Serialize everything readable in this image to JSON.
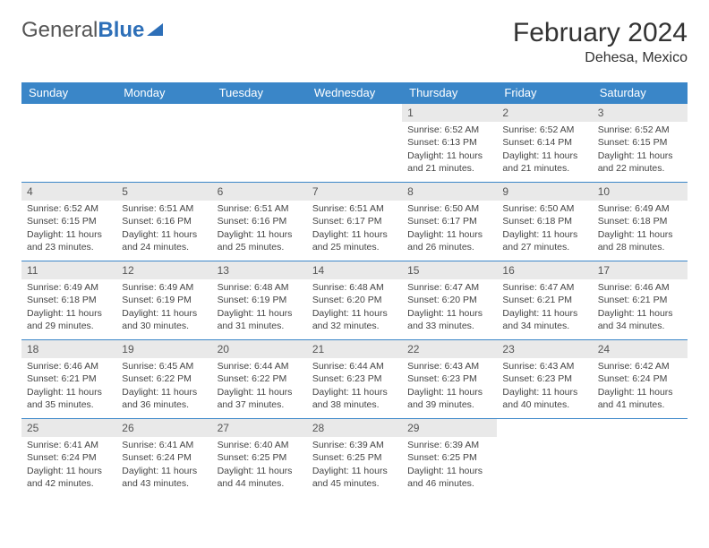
{
  "brand": {
    "part1": "General",
    "part2": "Blue"
  },
  "title": {
    "month": "February 2024",
    "location": "Dehesa, Mexico"
  },
  "colors": {
    "header_bg": "#3a86c8",
    "header_text": "#ffffff",
    "daynum_bg": "#e9e9e9",
    "row_border": "#3a86c8",
    "body_text": "#444444"
  },
  "weekdays": [
    "Sunday",
    "Monday",
    "Tuesday",
    "Wednesday",
    "Thursday",
    "Friday",
    "Saturday"
  ],
  "weeks": [
    [
      {
        "empty": true
      },
      {
        "empty": true
      },
      {
        "empty": true
      },
      {
        "empty": true
      },
      {
        "day": 1,
        "sunrise": "6:52 AM",
        "sunset": "6:13 PM",
        "daylight": "11 hours and 21 minutes."
      },
      {
        "day": 2,
        "sunrise": "6:52 AM",
        "sunset": "6:14 PM",
        "daylight": "11 hours and 21 minutes."
      },
      {
        "day": 3,
        "sunrise": "6:52 AM",
        "sunset": "6:15 PM",
        "daylight": "11 hours and 22 minutes."
      }
    ],
    [
      {
        "day": 4,
        "sunrise": "6:52 AM",
        "sunset": "6:15 PM",
        "daylight": "11 hours and 23 minutes."
      },
      {
        "day": 5,
        "sunrise": "6:51 AM",
        "sunset": "6:16 PM",
        "daylight": "11 hours and 24 minutes."
      },
      {
        "day": 6,
        "sunrise": "6:51 AM",
        "sunset": "6:16 PM",
        "daylight": "11 hours and 25 minutes."
      },
      {
        "day": 7,
        "sunrise": "6:51 AM",
        "sunset": "6:17 PM",
        "daylight": "11 hours and 25 minutes."
      },
      {
        "day": 8,
        "sunrise": "6:50 AM",
        "sunset": "6:17 PM",
        "daylight": "11 hours and 26 minutes."
      },
      {
        "day": 9,
        "sunrise": "6:50 AM",
        "sunset": "6:18 PM",
        "daylight": "11 hours and 27 minutes."
      },
      {
        "day": 10,
        "sunrise": "6:49 AM",
        "sunset": "6:18 PM",
        "daylight": "11 hours and 28 minutes."
      }
    ],
    [
      {
        "day": 11,
        "sunrise": "6:49 AM",
        "sunset": "6:18 PM",
        "daylight": "11 hours and 29 minutes."
      },
      {
        "day": 12,
        "sunrise": "6:49 AM",
        "sunset": "6:19 PM",
        "daylight": "11 hours and 30 minutes."
      },
      {
        "day": 13,
        "sunrise": "6:48 AM",
        "sunset": "6:19 PM",
        "daylight": "11 hours and 31 minutes."
      },
      {
        "day": 14,
        "sunrise": "6:48 AM",
        "sunset": "6:20 PM",
        "daylight": "11 hours and 32 minutes."
      },
      {
        "day": 15,
        "sunrise": "6:47 AM",
        "sunset": "6:20 PM",
        "daylight": "11 hours and 33 minutes."
      },
      {
        "day": 16,
        "sunrise": "6:47 AM",
        "sunset": "6:21 PM",
        "daylight": "11 hours and 34 minutes."
      },
      {
        "day": 17,
        "sunrise": "6:46 AM",
        "sunset": "6:21 PM",
        "daylight": "11 hours and 34 minutes."
      }
    ],
    [
      {
        "day": 18,
        "sunrise": "6:46 AM",
        "sunset": "6:21 PM",
        "daylight": "11 hours and 35 minutes."
      },
      {
        "day": 19,
        "sunrise": "6:45 AM",
        "sunset": "6:22 PM",
        "daylight": "11 hours and 36 minutes."
      },
      {
        "day": 20,
        "sunrise": "6:44 AM",
        "sunset": "6:22 PM",
        "daylight": "11 hours and 37 minutes."
      },
      {
        "day": 21,
        "sunrise": "6:44 AM",
        "sunset": "6:23 PM",
        "daylight": "11 hours and 38 minutes."
      },
      {
        "day": 22,
        "sunrise": "6:43 AM",
        "sunset": "6:23 PM",
        "daylight": "11 hours and 39 minutes."
      },
      {
        "day": 23,
        "sunrise": "6:43 AM",
        "sunset": "6:23 PM",
        "daylight": "11 hours and 40 minutes."
      },
      {
        "day": 24,
        "sunrise": "6:42 AM",
        "sunset": "6:24 PM",
        "daylight": "11 hours and 41 minutes."
      }
    ],
    [
      {
        "day": 25,
        "sunrise": "6:41 AM",
        "sunset": "6:24 PM",
        "daylight": "11 hours and 42 minutes."
      },
      {
        "day": 26,
        "sunrise": "6:41 AM",
        "sunset": "6:24 PM",
        "daylight": "11 hours and 43 minutes."
      },
      {
        "day": 27,
        "sunrise": "6:40 AM",
        "sunset": "6:25 PM",
        "daylight": "11 hours and 44 minutes."
      },
      {
        "day": 28,
        "sunrise": "6:39 AM",
        "sunset": "6:25 PM",
        "daylight": "11 hours and 45 minutes."
      },
      {
        "day": 29,
        "sunrise": "6:39 AM",
        "sunset": "6:25 PM",
        "daylight": "11 hours and 46 minutes."
      },
      {
        "empty": true
      },
      {
        "empty": true
      }
    ]
  ],
  "labels": {
    "sunrise": "Sunrise:",
    "sunset": "Sunset:",
    "daylight": "Daylight:"
  }
}
